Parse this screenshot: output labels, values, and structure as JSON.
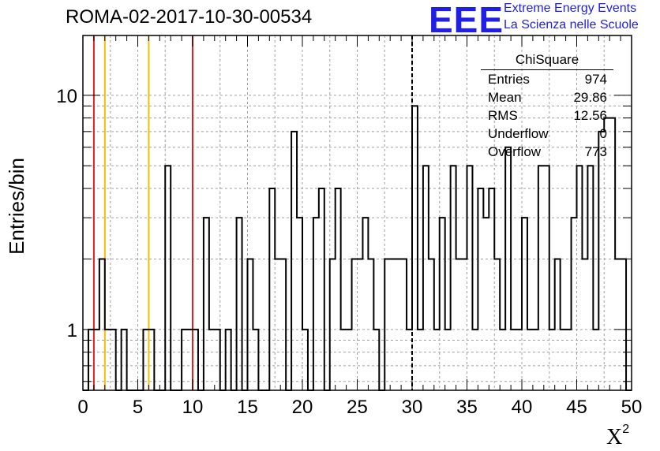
{
  "chart_data": {
    "type": "bar",
    "title": "ROMA-02-2017-10-30-00534",
    "xlabel": "X",
    "xlabel_sup": "2",
    "ylabel": "Entries/bin",
    "xlim": [
      0,
      50
    ],
    "ylim": [
      0.55,
      18
    ],
    "yscale": "log",
    "grid": true,
    "bin_width": 0.5,
    "x_ticks": [
      "0",
      "5",
      "10",
      "15",
      "20",
      "25",
      "30",
      "35",
      "40",
      "45",
      "50"
    ],
    "y_ticks": [
      "1",
      "10"
    ],
    "bins": [
      {
        "x": 0.5,
        "y": 1
      },
      {
        "x": 1.0,
        "y": 1
      },
      {
        "x": 1.5,
        "y": 2
      },
      {
        "x": 2.0,
        "y": 1
      },
      {
        "x": 2.5,
        "y": 1
      },
      {
        "x": 3.5,
        "y": 1
      },
      {
        "x": 5.5,
        "y": 1
      },
      {
        "x": 6.0,
        "y": 1
      },
      {
        "x": 7.5,
        "y": 5
      },
      {
        "x": 9.0,
        "y": 1
      },
      {
        "x": 9.5,
        "y": 1
      },
      {
        "x": 10.0,
        "y": 1
      },
      {
        "x": 11.0,
        "y": 3
      },
      {
        "x": 11.5,
        "y": 1
      },
      {
        "x": 12.0,
        "y": 1
      },
      {
        "x": 13.0,
        "y": 1
      },
      {
        "x": 14.0,
        "y": 3
      },
      {
        "x": 15.0,
        "y": 2
      },
      {
        "x": 15.5,
        "y": 1
      },
      {
        "x": 17.0,
        "y": 4
      },
      {
        "x": 17.5,
        "y": 2
      },
      {
        "x": 18.0,
        "y": 2
      },
      {
        "x": 19.0,
        "y": 7
      },
      {
        "x": 19.5,
        "y": 3
      },
      {
        "x": 20.0,
        "y": 1
      },
      {
        "x": 21.0,
        "y": 3
      },
      {
        "x": 21.5,
        "y": 4
      },
      {
        "x": 22.5,
        "y": 2
      },
      {
        "x": 23.0,
        "y": 4
      },
      {
        "x": 23.5,
        "y": 1
      },
      {
        "x": 24.0,
        "y": 1
      },
      {
        "x": 24.5,
        "y": 2
      },
      {
        "x": 25.0,
        "y": 2
      },
      {
        "x": 25.5,
        "y": 3
      },
      {
        "x": 26.0,
        "y": 2
      },
      {
        "x": 26.5,
        "y": 1
      },
      {
        "x": 27.5,
        "y": 2
      },
      {
        "x": 28.0,
        "y": 2
      },
      {
        "x": 28.5,
        "y": 2
      },
      {
        "x": 29.0,
        "y": 2
      },
      {
        "x": 29.5,
        "y": 1
      },
      {
        "x": 30.0,
        "y": 9
      },
      {
        "x": 30.5,
        "y": 1
      },
      {
        "x": 31.0,
        "y": 5
      },
      {
        "x": 31.5,
        "y": 2
      },
      {
        "x": 32.0,
        "y": 1
      },
      {
        "x": 32.5,
        "y": 3
      },
      {
        "x": 33.0,
        "y": 1
      },
      {
        "x": 33.5,
        "y": 5
      },
      {
        "x": 34.0,
        "y": 2
      },
      {
        "x": 34.5,
        "y": 2
      },
      {
        "x": 35.0,
        "y": 5
      },
      {
        "x": 35.5,
        "y": 1
      },
      {
        "x": 36.0,
        "y": 4
      },
      {
        "x": 36.5,
        "y": 3
      },
      {
        "x": 37.0,
        "y": 4
      },
      {
        "x": 37.5,
        "y": 2
      },
      {
        "x": 38.0,
        "y": 1
      },
      {
        "x": 38.5,
        "y": 6
      },
      {
        "x": 39.0,
        "y": 1
      },
      {
        "x": 39.5,
        "y": 1
      },
      {
        "x": 40.0,
        "y": 3
      },
      {
        "x": 40.5,
        "y": 1
      },
      {
        "x": 41.0,
        "y": 1
      },
      {
        "x": 41.5,
        "y": 5
      },
      {
        "x": 42.0,
        "y": 5
      },
      {
        "x": 42.5,
        "y": 1
      },
      {
        "x": 43.0,
        "y": 2
      },
      {
        "x": 43.5,
        "y": 1
      },
      {
        "x": 44.0,
        "y": 1
      },
      {
        "x": 44.5,
        "y": 3
      },
      {
        "x": 45.0,
        "y": 5
      },
      {
        "x": 45.5,
        "y": 2
      },
      {
        "x": 46.0,
        "y": 5
      },
      {
        "x": 46.5,
        "y": 1
      },
      {
        "x": 47.0,
        "y": 7
      },
      {
        "x": 47.5,
        "y": 8
      },
      {
        "x": 48.0,
        "y": 8
      },
      {
        "x": 48.5,
        "y": 2
      },
      {
        "x": 49.0,
        "y": 2
      }
    ],
    "vlines": [
      {
        "x": 1.0,
        "color": "#e02020",
        "style": "solid"
      },
      {
        "x": 2.0,
        "color": "#f0c000",
        "style": "solid"
      },
      {
        "x": 6.0,
        "color": "#f0c000",
        "style": "solid"
      },
      {
        "x": 10.0,
        "color": "#e02020",
        "style": "solid"
      },
      {
        "x": 30.0,
        "color": "#000000",
        "style": "dashed"
      }
    ],
    "stats": {
      "title": "ChiSquare",
      "rows": [
        {
          "key": "Entries",
          "value": "974"
        },
        {
          "key": "Mean",
          "value": "29.86"
        },
        {
          "key": "RMS",
          "value": "12.56"
        },
        {
          "key": "Underflow",
          "value": "0"
        },
        {
          "key": "Overflow",
          "value": "773"
        }
      ]
    }
  },
  "logo": {
    "mark": "EEE",
    "line1": "Extreme Energy Events",
    "line2": "La Scienza nelle Scuole",
    "color": "#1f1fe6"
  }
}
